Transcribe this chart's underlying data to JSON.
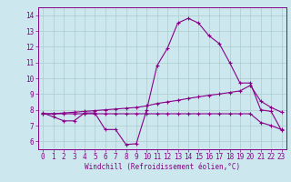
{
  "bg_color": "#cce8ee",
  "line_color": "#880088",
  "grid_color": "#aacccc",
  "xlabel": "Windchill (Refroidissement éolien,°C)",
  "ylim": [
    5.5,
    14.5
  ],
  "xlim": [
    -0.5,
    23.5
  ],
  "yticks": [
    6,
    7,
    8,
    9,
    10,
    11,
    12,
    13,
    14
  ],
  "xticks": [
    0,
    1,
    2,
    3,
    4,
    5,
    6,
    7,
    8,
    9,
    10,
    11,
    12,
    13,
    14,
    15,
    16,
    17,
    18,
    19,
    20,
    21,
    22,
    23
  ],
  "curve1_x": [
    0,
    1,
    2,
    3,
    4,
    5,
    6,
    7,
    8,
    9,
    10,
    11,
    12,
    13,
    14,
    15,
    16,
    17,
    18,
    19,
    20,
    21,
    22,
    23
  ],
  "curve1_y": [
    7.8,
    7.55,
    7.3,
    7.3,
    7.8,
    7.8,
    6.75,
    6.75,
    5.8,
    5.85,
    8.0,
    10.8,
    11.9,
    13.5,
    13.8,
    13.5,
    12.7,
    12.2,
    11.0,
    9.7,
    9.7,
    8.0,
    7.9,
    6.7
  ],
  "curve2_x": [
    0,
    1,
    2,
    3,
    4,
    5,
    6,
    7,
    8,
    9,
    10,
    11,
    12,
    13,
    14,
    15,
    16,
    17,
    18,
    19,
    20,
    21,
    22,
    23
  ],
  "curve2_y": [
    7.75,
    7.75,
    7.8,
    7.85,
    7.9,
    7.95,
    8.0,
    8.05,
    8.1,
    8.15,
    8.25,
    8.4,
    8.5,
    8.6,
    8.72,
    8.82,
    8.92,
    9.0,
    9.1,
    9.2,
    9.55,
    8.55,
    8.15,
    7.85
  ],
  "curve3_x": [
    0,
    1,
    2,
    3,
    4,
    5,
    6,
    7,
    8,
    9,
    10,
    11,
    12,
    13,
    14,
    15,
    16,
    17,
    18,
    19,
    20,
    21,
    22,
    23
  ],
  "curve3_y": [
    7.75,
    7.75,
    7.75,
    7.75,
    7.75,
    7.75,
    7.75,
    7.75,
    7.75,
    7.75,
    7.75,
    7.75,
    7.75,
    7.75,
    7.75,
    7.75,
    7.75,
    7.75,
    7.75,
    7.75,
    7.75,
    7.2,
    7.0,
    6.75
  ]
}
